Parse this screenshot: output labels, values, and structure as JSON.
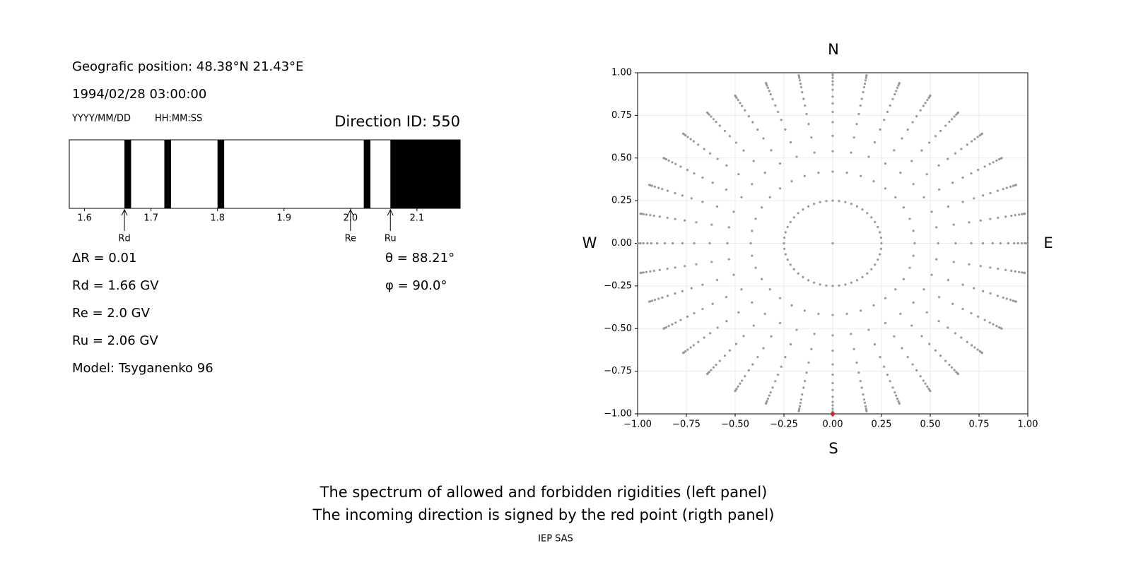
{
  "chart_data": [
    {
      "type": "spectrum",
      "title": "Direction ID: 550",
      "header": [
        "Geografic position: 48.38°N 21.43°E",
        "1994/02/28 03:00:00"
      ],
      "header_hints": [
        "YYYY/MM/DD",
        "HH:MM:SS"
      ],
      "xlim": [
        1.577,
        2.165
      ],
      "xticks": [
        1.6,
        1.7,
        1.8,
        1.9,
        {
          "value": 2.0,
          "label": "2.0"
        },
        2.1
      ],
      "forbidden": [
        [
          1.66,
          1.67
        ],
        [
          1.72,
          1.73
        ],
        [
          1.8,
          1.81
        ],
        [
          2.02,
          2.03
        ],
        [
          2.06,
          2.165
        ]
      ],
      "color": "#000000",
      "markers": [
        {
          "name": "Rd",
          "value": 1.66
        },
        {
          "name": "Re",
          "value": 2.0
        },
        {
          "name": "Ru",
          "value": 2.06
        }
      ],
      "info_left": [
        "ΔR = 0.01",
        "Rd = 1.66 GV",
        "Re = 2.0 GV",
        "Ru = 2.06 GV",
        "Model: Tsyganenko 96"
      ],
      "info_right": [
        "θ = 88.21°",
        "φ = 90.0°"
      ]
    },
    {
      "type": "scatter",
      "xlim": [
        -1,
        1
      ],
      "ylim": [
        -1,
        1
      ],
      "xticks": [
        {
          "value": -1,
          "label": "−1.00"
        },
        {
          "value": -0.75,
          "label": "−0.75"
        },
        {
          "value": -0.5,
          "label": "−0.50"
        },
        {
          "value": -0.25,
          "label": "−0.25"
        },
        {
          "value": 0,
          "label": "0.00"
        },
        0.25,
        {
          "value": 0.5,
          "label": "0.50"
        },
        0.75,
        {
          "value": 1,
          "label": "1.00"
        }
      ],
      "yticks": [
        {
          "value": -1,
          "label": "−1.00"
        },
        {
          "value": -0.75,
          "label": "−0.75"
        },
        {
          "value": -0.5,
          "label": "−0.50"
        },
        {
          "value": -0.25,
          "label": "−0.25"
        },
        {
          "value": 0,
          "label": "0.00"
        },
        0.25,
        {
          "value": 0.5,
          "label": "0.50"
        },
        0.75,
        {
          "value": 1,
          "label": "1.00"
        }
      ],
      "grid": true,
      "compass": [
        "N",
        "E",
        "S",
        "W"
      ],
      "point_color": "#999999",
      "azimuth_step_deg": 10,
      "radii": [
        0.42,
        0.54,
        0.63,
        0.71,
        0.77,
        0.82,
        0.86,
        0.9,
        0.93,
        0.95,
        0.97,
        0.985,
        0.995,
        1.0
      ],
      "inner_ring": {
        "radius": 0.25,
        "azimuth_step_deg": 7.5
      },
      "center_point": {
        "x": 0,
        "y": 0
      },
      "highlight": {
        "x": 0,
        "y": -1,
        "color": "#d62728"
      }
    }
  ],
  "caption": [
    "The spectrum of allowed and forbidden rigidities (left panel)",
    "The incoming direction is signed by the red point (rigth panel)"
  ],
  "credit": "IEP SAS"
}
